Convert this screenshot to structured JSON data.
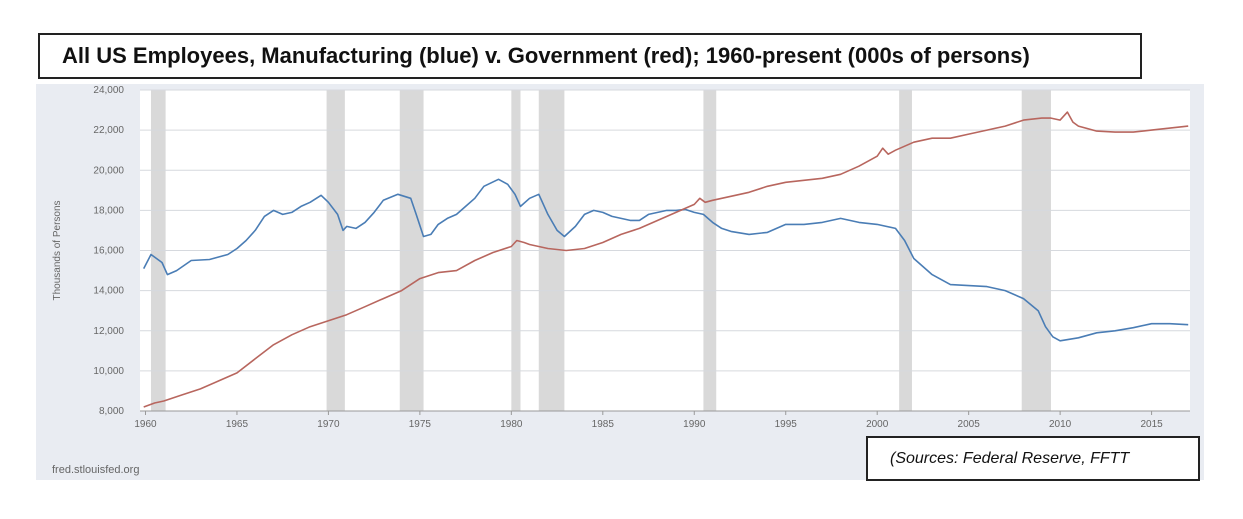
{
  "title": "All US Employees, Manufacturing (blue) v. Government (red); 1960-present (000s of persons)",
  "source_note": "(Sources:  Federal Reserve, FFTT",
  "credit": "fred.stlouisfed.org",
  "colors": {
    "manufacturing": "#4a7db5",
    "government": "#b8665e",
    "recession": "#d9d9d9",
    "grid": "#ffffff",
    "plot_bg": "#ffffff"
  },
  "chart_data": {
    "type": "line",
    "title": "All US Employees, Manufacturing (blue) v. Government (red); 1960-present (000s of persons)",
    "ylabel": "Thousands of Persons",
    "xlabel": "",
    "xlim": [
      1959.7,
      2017.1
    ],
    "ylim": [
      8000,
      24000
    ],
    "grid": true,
    "x_ticks": [
      1960,
      1965,
      1970,
      1975,
      1980,
      1985,
      1990,
      1995,
      2000,
      2005,
      2010,
      2015
    ],
    "x_tick_labels": [
      "1960",
      "1965",
      "1970",
      "1975",
      "1980",
      "1985",
      "1990",
      "1995",
      "2000",
      "2005",
      "2010",
      "2015"
    ],
    "y_ticks": [
      8000,
      10000,
      12000,
      14000,
      16000,
      18000,
      20000,
      22000,
      24000
    ],
    "y_tick_labels": [
      "8,000",
      "10,000",
      "12,000",
      "14,000",
      "16,000",
      "18,000",
      "20,000",
      "22,000",
      "24,000"
    ],
    "recessions": [
      [
        1960.3,
        1961.1
      ],
      [
        1969.9,
        1970.9
      ],
      [
        1973.9,
        1975.2
      ],
      [
        1980.0,
        1980.5
      ],
      [
        1981.5,
        1982.9
      ],
      [
        1990.5,
        1991.2
      ],
      [
        2001.2,
        2001.9
      ],
      [
        2007.9,
        2009.5
      ]
    ],
    "series": [
      {
        "name": "Manufacturing",
        "color": "#4a7db5",
        "points": [
          [
            1959.9,
            15100
          ],
          [
            1960.3,
            15800
          ],
          [
            1960.9,
            15400
          ],
          [
            1961.2,
            14800
          ],
          [
            1961.7,
            15000
          ],
          [
            1962.5,
            15500
          ],
          [
            1963.5,
            15550
          ],
          [
            1964.5,
            15800
          ],
          [
            1965.0,
            16100
          ],
          [
            1965.5,
            16500
          ],
          [
            1966.0,
            17000
          ],
          [
            1966.5,
            17700
          ],
          [
            1967.0,
            18000
          ],
          [
            1967.5,
            17800
          ],
          [
            1968.0,
            17900
          ],
          [
            1968.5,
            18200
          ],
          [
            1969.0,
            18400
          ],
          [
            1969.6,
            18750
          ],
          [
            1970.0,
            18400
          ],
          [
            1970.5,
            17800
          ],
          [
            1970.8,
            17000
          ],
          [
            1971.0,
            17200
          ],
          [
            1971.5,
            17100
          ],
          [
            1972.0,
            17400
          ],
          [
            1972.5,
            17900
          ],
          [
            1973.0,
            18500
          ],
          [
            1973.8,
            18800
          ],
          [
            1974.5,
            18600
          ],
          [
            1974.8,
            17800
          ],
          [
            1975.2,
            16700
          ],
          [
            1975.6,
            16800
          ],
          [
            1976.0,
            17300
          ],
          [
            1976.5,
            17600
          ],
          [
            1977.0,
            17800
          ],
          [
            1977.5,
            18200
          ],
          [
            1978.0,
            18600
          ],
          [
            1978.5,
            19200
          ],
          [
            1979.3,
            19550
          ],
          [
            1979.8,
            19300
          ],
          [
            1980.2,
            18800
          ],
          [
            1980.5,
            18200
          ],
          [
            1981.0,
            18600
          ],
          [
            1981.5,
            18800
          ],
          [
            1982.0,
            17800
          ],
          [
            1982.5,
            17000
          ],
          [
            1982.9,
            16700
          ],
          [
            1983.5,
            17200
          ],
          [
            1984.0,
            17800
          ],
          [
            1984.5,
            18000
          ],
          [
            1985.0,
            17900
          ],
          [
            1985.5,
            17700
          ],
          [
            1986.0,
            17600
          ],
          [
            1986.5,
            17500
          ],
          [
            1987.0,
            17500
          ],
          [
            1987.5,
            17800
          ],
          [
            1988.0,
            17900
          ],
          [
            1988.5,
            18000
          ],
          [
            1989.0,
            18000
          ],
          [
            1989.5,
            18050
          ],
          [
            1990.0,
            17900
          ],
          [
            1990.5,
            17800
          ],
          [
            1991.0,
            17400
          ],
          [
            1991.5,
            17100
          ],
          [
            1992.0,
            16950
          ],
          [
            1993.0,
            16800
          ],
          [
            1994.0,
            16900
          ],
          [
            1995.0,
            17300
          ],
          [
            1996.0,
            17300
          ],
          [
            1997.0,
            17400
          ],
          [
            1998.0,
            17600
          ],
          [
            1998.5,
            17500
          ],
          [
            1999.0,
            17400
          ],
          [
            2000.0,
            17300
          ],
          [
            2001.0,
            17100
          ],
          [
            2001.5,
            16500
          ],
          [
            2002.0,
            15600
          ],
          [
            2003.0,
            14800
          ],
          [
            2004.0,
            14300
          ],
          [
            2005.0,
            14250
          ],
          [
            2006.0,
            14200
          ],
          [
            2007.0,
            14000
          ],
          [
            2008.0,
            13600
          ],
          [
            2008.8,
            13000
          ],
          [
            2009.2,
            12200
          ],
          [
            2009.6,
            11700
          ],
          [
            2010.0,
            11500
          ],
          [
            2011.0,
            11650
          ],
          [
            2012.0,
            11900
          ],
          [
            2013.0,
            12000
          ],
          [
            2014.0,
            12150
          ],
          [
            2015.0,
            12350
          ],
          [
            2016.0,
            12350
          ],
          [
            2017.0,
            12300
          ]
        ]
      },
      {
        "name": "Government",
        "color": "#b8665e",
        "points": [
          [
            1959.9,
            8200
          ],
          [
            1960.5,
            8400
          ],
          [
            1961.0,
            8500
          ],
          [
            1962.0,
            8800
          ],
          [
            1963.0,
            9100
          ],
          [
            1964.0,
            9500
          ],
          [
            1965.0,
            9900
          ],
          [
            1966.0,
            10600
          ],
          [
            1967.0,
            11300
          ],
          [
            1968.0,
            11800
          ],
          [
            1969.0,
            12200
          ],
          [
            1970.0,
            12500
          ],
          [
            1971.0,
            12800
          ],
          [
            1972.0,
            13200
          ],
          [
            1973.0,
            13600
          ],
          [
            1974.0,
            14000
          ],
          [
            1975.0,
            14600
          ],
          [
            1976.0,
            14900
          ],
          [
            1977.0,
            15000
          ],
          [
            1978.0,
            15500
          ],
          [
            1979.0,
            15900
          ],
          [
            1980.0,
            16200
          ],
          [
            1980.3,
            16500
          ],
          [
            1980.7,
            16400
          ],
          [
            1981.0,
            16300
          ],
          [
            1982.0,
            16100
          ],
          [
            1983.0,
            16000
          ],
          [
            1984.0,
            16100
          ],
          [
            1985.0,
            16400
          ],
          [
            1986.0,
            16800
          ],
          [
            1987.0,
            17100
          ],
          [
            1988.0,
            17500
          ],
          [
            1989.0,
            17900
          ],
          [
            1990.0,
            18300
          ],
          [
            1990.3,
            18600
          ],
          [
            1990.6,
            18400
          ],
          [
            1991.0,
            18500
          ],
          [
            1992.0,
            18700
          ],
          [
            1993.0,
            18900
          ],
          [
            1994.0,
            19200
          ],
          [
            1995.0,
            19400
          ],
          [
            1996.0,
            19500
          ],
          [
            1997.0,
            19600
          ],
          [
            1998.0,
            19800
          ],
          [
            1999.0,
            20200
          ],
          [
            2000.0,
            20700
          ],
          [
            2000.3,
            21100
          ],
          [
            2000.6,
            20800
          ],
          [
            2001.0,
            21000
          ],
          [
            2002.0,
            21400
          ],
          [
            2003.0,
            21600
          ],
          [
            2004.0,
            21600
          ],
          [
            2005.0,
            21800
          ],
          [
            2006.0,
            22000
          ],
          [
            2007.0,
            22200
          ],
          [
            2008.0,
            22500
          ],
          [
            2009.0,
            22600
          ],
          [
            2009.5,
            22600
          ],
          [
            2010.0,
            22500
          ],
          [
            2010.4,
            22900
          ],
          [
            2010.7,
            22400
          ],
          [
            2011.0,
            22200
          ],
          [
            2012.0,
            21950
          ],
          [
            2013.0,
            21900
          ],
          [
            2014.0,
            21900
          ],
          [
            2015.0,
            22000
          ],
          [
            2016.0,
            22100
          ],
          [
            2017.0,
            22200
          ]
        ]
      }
    ]
  }
}
